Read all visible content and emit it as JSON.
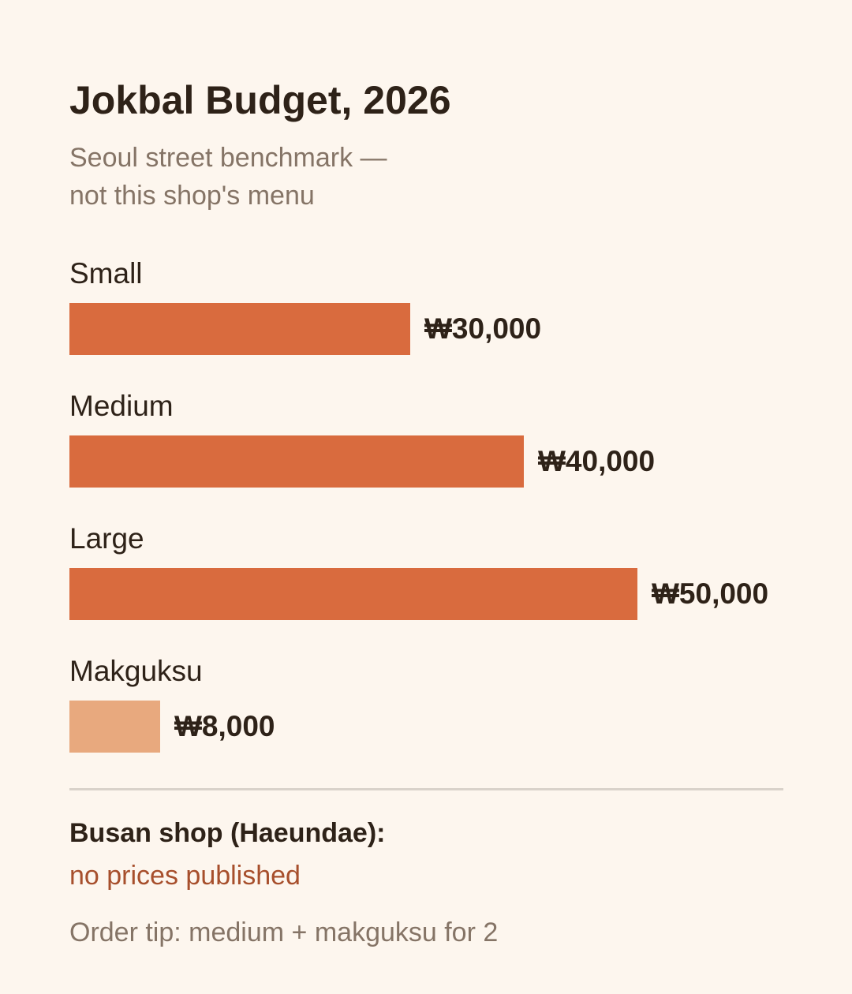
{
  "colors": {
    "background": "#fdf6ee",
    "bar_primary": "#d96b3e",
    "bar_secondary": "#e8a97e",
    "text": "#2e2218",
    "muted": "#857466",
    "accent": "#a74f2c",
    "divider": "#d9d2ca"
  },
  "chart_data": {
    "type": "bar",
    "orientation": "horizontal",
    "title": "Jokbal Budget, 2026",
    "subtitle_lines": [
      "Seoul street benchmark —",
      "not this shop's menu"
    ],
    "currency_symbol": "₩",
    "categories": [
      "Small",
      "Medium",
      "Large",
      "Makguksu"
    ],
    "values": [
      30000,
      40000,
      50000,
      8000
    ],
    "value_labels": [
      "₩30,000",
      "₩40,000",
      "₩50,000",
      "₩8,000"
    ],
    "bar_colors": [
      "#d96b3e",
      "#d96b3e",
      "#d96b3e",
      "#e8a97e"
    ],
    "xlim": [
      0,
      62500
    ],
    "grid": false,
    "legend": "none"
  },
  "footer": {
    "shop_label": "Busan shop (Haeundae):",
    "shop_note": "no prices published",
    "tip": "Order tip: medium + makguksu for 2"
  }
}
